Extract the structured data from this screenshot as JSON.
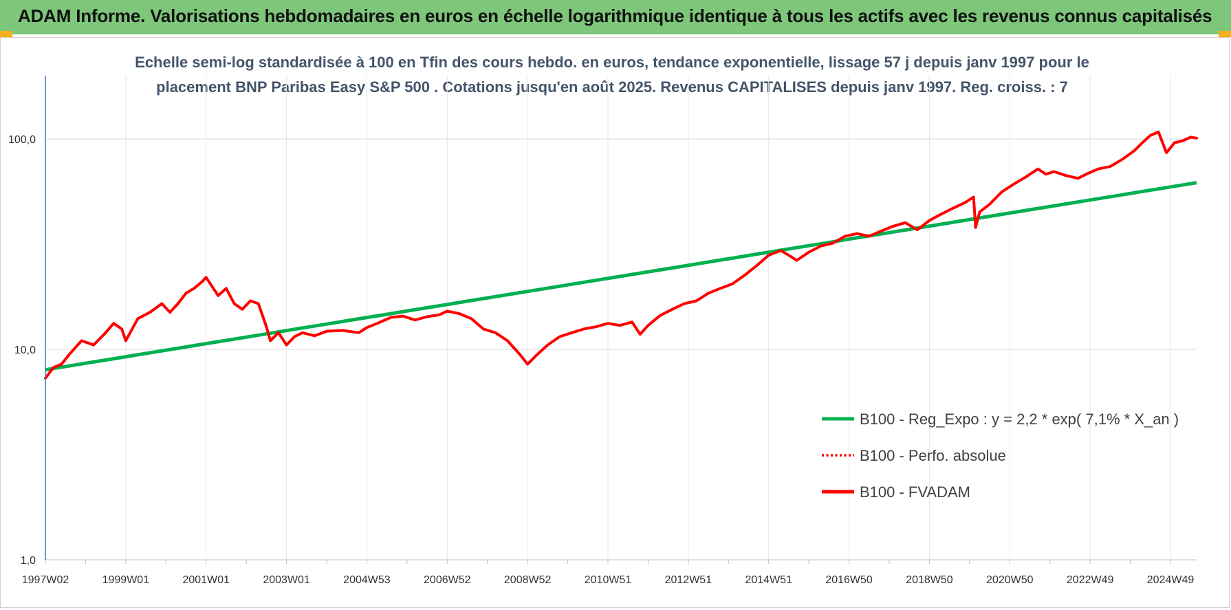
{
  "header": {
    "title": "ADAM Informe. Valorisations hebdomadaires en euros en échelle logarithmique identique à tous les actifs avec les revenus connus capitalisés"
  },
  "colors": {
    "header_bg": "#7dc67a",
    "corner_accent": "#f2b11a",
    "regression": "#00b050",
    "fvadam": "#ff0000",
    "grid": "#d9d9d9",
    "axis": "#4472c4"
  },
  "chart_data": {
    "type": "line",
    "title_line1": "Echelle semi-log standardisée à 100 en Tfin des cours hebdo. en euros, tendance exponentielle, lissage 57 j depuis janv 1997 pour le",
    "title_line2": "placement BNP Paribas Easy S&P 500 . Cotations jusqu'en août 2025. Revenus CAPITALISES depuis janv 1997. Reg. croiss. : 7",
    "y_scale": "log",
    "ylim": [
      1,
      200
    ],
    "xlim": [
      1997.0,
      2025.65
    ],
    "y_tick_labels": [
      {
        "value": 1,
        "label": "1,0"
      },
      {
        "value": 10,
        "label": "10,0"
      },
      {
        "value": 100,
        "label": "100,0"
      }
    ],
    "x_tick_labels": [
      {
        "value": 1997.0,
        "label": "1997W02"
      },
      {
        "value": 1999.0,
        "label": "1999W01"
      },
      {
        "value": 2001.0,
        "label": "2001W01"
      },
      {
        "value": 2003.0,
        "label": "2003W01"
      },
      {
        "value": 2005.0,
        "label": "2004W53"
      },
      {
        "value": 2007.0,
        "label": "2006W52"
      },
      {
        "value": 2009.0,
        "label": "2008W52"
      },
      {
        "value": 2011.0,
        "label": "2010W51"
      },
      {
        "value": 2013.0,
        "label": "2012W51"
      },
      {
        "value": 2015.0,
        "label": "2014W51"
      },
      {
        "value": 2017.0,
        "label": "2016W50"
      },
      {
        "value": 2019.0,
        "label": "2018W50"
      },
      {
        "value": 2021.0,
        "label": "2020W50"
      },
      {
        "value": 2023.0,
        "label": "2022W49"
      },
      {
        "value": 2025.0,
        "label": "2024W49"
      }
    ],
    "grid": true,
    "legend_position": "lower-right",
    "series": [
      {
        "name": "B100 - Reg_Expo : y = 2,2 * exp( 7,1% *  X_an )",
        "style": "solid-thick",
        "color": "#00b050",
        "x": [
          1997.0,
          2025.65
        ],
        "y": [
          8.0,
          62.0
        ]
      },
      {
        "name": "B100 - Perfo. absolue",
        "style": "dotted",
        "color": "#ff0000",
        "x": [],
        "y": []
      },
      {
        "name": "B100 - FVADAM",
        "style": "solid",
        "color": "#ff0000",
        "x": [
          1997.0,
          1997.2,
          1997.4,
          1997.6,
          1997.9,
          1998.2,
          1998.5,
          1998.7,
          1998.9,
          1999.0,
          1999.3,
          1999.6,
          1999.9,
          2000.1,
          2000.3,
          2000.5,
          2000.7,
          2000.9,
          2001.0,
          2001.3,
          2001.5,
          2001.7,
          2001.9,
          2002.1,
          2002.3,
          2002.5,
          2002.6,
          2002.8,
          2003.0,
          2003.2,
          2003.4,
          2003.7,
          2004.0,
          2004.4,
          2004.8,
          2005.0,
          2005.3,
          2005.6,
          2005.9,
          2006.2,
          2006.5,
          2006.8,
          2007.0,
          2007.3,
          2007.6,
          2007.9,
          2008.2,
          2008.5,
          2008.8,
          2009.0,
          2009.2,
          2009.5,
          2009.8,
          2010.1,
          2010.4,
          2010.7,
          2011.0,
          2011.3,
          2011.6,
          2011.8,
          2012.0,
          2012.3,
          2012.6,
          2012.9,
          2013.2,
          2013.5,
          2013.8,
          2014.1,
          2014.4,
          2014.7,
          2015.0,
          2015.3,
          2015.5,
          2015.7,
          2016.0,
          2016.3,
          2016.6,
          2016.9,
          2017.2,
          2017.5,
          2017.8,
          2018.1,
          2018.4,
          2018.7,
          2019.0,
          2019.3,
          2019.6,
          2019.9,
          2020.1,
          2020.15,
          2020.25,
          2020.5,
          2020.8,
          2021.1,
          2021.4,
          2021.7,
          2021.9,
          2022.1,
          2022.4,
          2022.7,
          2022.9,
          2023.2,
          2023.5,
          2023.8,
          2024.1,
          2024.3,
          2024.5,
          2024.7,
          2024.9,
          2025.1,
          2025.3,
          2025.5,
          2025.65
        ],
        "y": [
          7.3,
          8.2,
          8.5,
          9.5,
          11.0,
          10.5,
          12.0,
          13.3,
          12.5,
          11.0,
          14.0,
          15.0,
          16.5,
          15.0,
          16.5,
          18.5,
          19.5,
          21.0,
          22.0,
          18.0,
          19.5,
          16.5,
          15.5,
          17.0,
          16.5,
          12.8,
          11.0,
          12.0,
          10.5,
          11.5,
          12.0,
          11.6,
          12.2,
          12.3,
          12.0,
          12.7,
          13.4,
          14.2,
          14.4,
          13.8,
          14.3,
          14.6,
          15.2,
          14.8,
          14.0,
          12.5,
          12.0,
          11.0,
          9.5,
          8.5,
          9.3,
          10.5,
          11.5,
          12.0,
          12.5,
          12.8,
          13.3,
          13.0,
          13.5,
          11.8,
          13.0,
          14.5,
          15.5,
          16.5,
          17.0,
          18.5,
          19.5,
          20.5,
          22.5,
          25.0,
          28.0,
          29.5,
          28.0,
          26.5,
          29.0,
          31.0,
          32.0,
          34.5,
          35.5,
          34.5,
          36.5,
          38.5,
          40.0,
          37.0,
          41.0,
          44.0,
          47.0,
          50.0,
          53.0,
          38.0,
          45.0,
          49.0,
          56.0,
          61.0,
          66.0,
          72.0,
          68.0,
          70.0,
          67.0,
          65.0,
          68.0,
          72.0,
          74.0,
          80.0,
          88.0,
          96.0,
          104.0,
          108.0,
          86.0,
          96.0,
          98.0,
          102.0,
          101.0
        ]
      }
    ]
  }
}
